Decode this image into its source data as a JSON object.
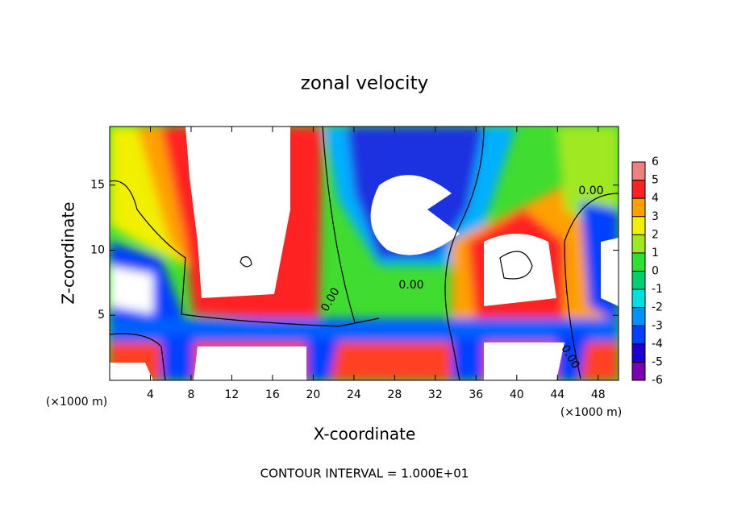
{
  "chart_data": {
    "type": "contour",
    "title": "zonal velocity",
    "x_label": "X-coordinate",
    "y_label": "Z-coordinate",
    "x_unit_label": "(×1000 m)",
    "y_unit_label": "(×1000 m)",
    "annotation": "CONTOUR INTERVAL = 1.000E+01",
    "contour_labels": [
      "0.00",
      "0.00",
      "0.00",
      "0.00"
    ],
    "xlim": [
      0,
      50
    ],
    "xticks": [
      4,
      8,
      12,
      16,
      20,
      24,
      28,
      32,
      36,
      40,
      44,
      48
    ],
    "ylim": [
      0,
      19.5
    ],
    "yticks": [
      5,
      10,
      15
    ],
    "colorbar_ticks": [
      -6,
      -5,
      -4,
      -3,
      -2,
      -1,
      0,
      1,
      2,
      3,
      4,
      5,
      6
    ],
    "colorbar_colors": [
      "#7a00b0",
      "#1a00d0",
      "#0040ff",
      "#0090ff",
      "#00e0e0",
      "#00d070",
      "#30e030",
      "#a0e820",
      "#f0f000",
      "#ffa000",
      "#ff2020",
      "#f08080"
    ]
  }
}
